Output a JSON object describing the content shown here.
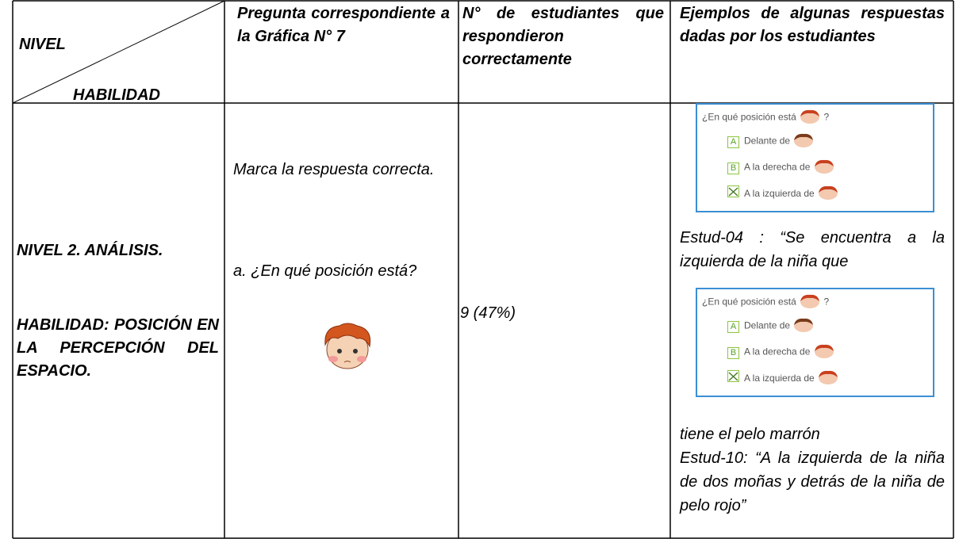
{
  "header": {
    "level": "NIVEL",
    "skill": "HABILIDAD",
    "question": "Pregunta correspondiente a la Gráfica N° 7",
    "count": "N° de estudiantes que respondieron correctamente",
    "examples": "Ejemplos de algunas respuestas dadas por los estudiantes"
  },
  "row": {
    "level": "NIVEL 2. ANÁLISIS.",
    "skill": "HABILIDAD: POSICIÓN EN LA PERCEPCIÓN DEL ESPACIO.",
    "instruction": "Marca la respuesta correcta.",
    "question": "a. ¿En qué posición está?",
    "count": "9 (47%)",
    "images": [
      {
        "question": "¿En qué posición está",
        "mark": "?",
        "options": [
          {
            "letter": "A",
            "text": "Delante de"
          },
          {
            "letter": "B",
            "text": "A la derecha de"
          },
          {
            "text": "A la izquierda de"
          }
        ]
      },
      {
        "question": "¿En qué posición está",
        "mark": "?",
        "options": [
          {
            "letter": "A",
            "text": "Delante de"
          },
          {
            "letter": "B",
            "text": "A la derecha de"
          },
          {
            "text": "A la izquierda de"
          }
        ]
      }
    ],
    "responses": [
      "Estud-04 : “Se encuentra a la izquierda de la niña que",
      "tiene el pelo marrón",
      "Estud-10: “A la izquierda de la niña de dos moñas y detrás de la niña de pelo rojo”"
    ]
  }
}
